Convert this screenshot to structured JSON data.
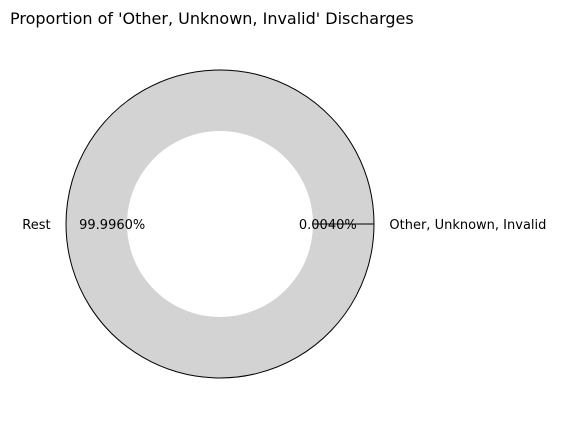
{
  "chart_data": {
    "type": "pie",
    "title": "Proportion of 'Other, Unknown, Invalid' Discharges",
    "donut": true,
    "slices": [
      {
        "label": "Other, Unknown, Invalid",
        "value": 0.004,
        "pct_label": "0.0040%",
        "color": "#4472c4"
      },
      {
        "label": "Rest",
        "value": 99.996,
        "pct_label": "99.9960%",
        "color": "#d3d3d3"
      }
    ],
    "edge_color": "#000000",
    "legend": "none"
  }
}
